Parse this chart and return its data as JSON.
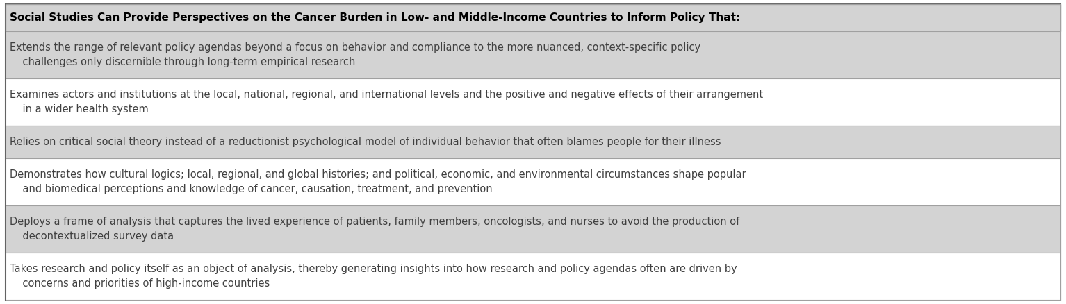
{
  "header": "Social Studies Can Provide Perspectives on the Cancer Burden in Low- and Middle-Income Countries to Inform Policy That:",
  "rows": [
    {
      "line1": "Extends the range of relevant policy agendas beyond a focus on behavior and compliance to the more nuanced, context-specific policy",
      "line2": "    challenges only discernible through long-term empirical research",
      "shaded": true,
      "two_lines": true
    },
    {
      "line1": "Examines actors and institutions at the local, national, regional, and international levels and the positive and negative effects of their arrangement",
      "line2": "    in a wider health system",
      "shaded": false,
      "two_lines": true
    },
    {
      "line1": "Relies on critical social theory instead of a reductionist psychological model of individual behavior that often blames people for their illness",
      "line2": "",
      "shaded": true,
      "two_lines": false
    },
    {
      "line1": "Demonstrates how cultural logics; local, regional, and global histories; and political, economic, and environmental circumstances shape popular",
      "line2": "    and biomedical perceptions and knowledge of cancer, causation, treatment, and prevention",
      "shaded": false,
      "two_lines": true
    },
    {
      "line1": "Deploys a frame of analysis that captures the lived experience of patients, family members, oncologists, and nurses to avoid the production of",
      "line2": "    decontextualized survey data",
      "shaded": true,
      "two_lines": true
    },
    {
      "line1": "Takes research and policy itself as an object of analysis, thereby generating insights into how research and policy agendas often are driven by",
      "line2": "    concerns and priorities of high-income countries",
      "shaded": false,
      "two_lines": true
    }
  ],
  "header_bg": "#d3d3d3",
  "shaded_bg": "#d3d3d3",
  "unshaded_bg": "#ffffff",
  "border_color": "#a0a0a0",
  "outer_border_color": "#606060",
  "header_fontsize": 11.0,
  "row_fontsize": 10.5,
  "header_text_color": "#000000",
  "row_text_color": "#404040",
  "fig_width": 15.34,
  "fig_height": 4.38,
  "dpi": 100
}
